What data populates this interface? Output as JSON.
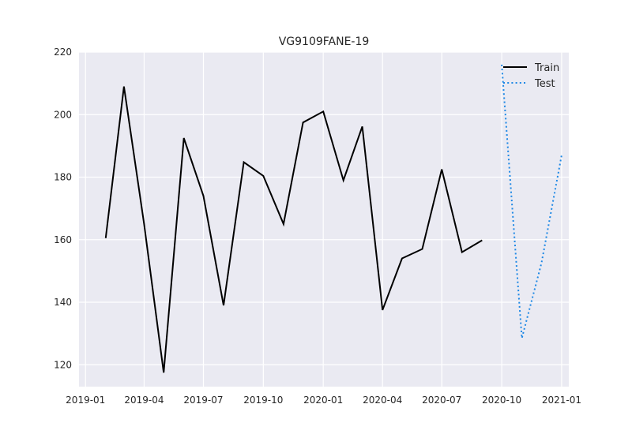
{
  "chart_data": {
    "type": "line",
    "title": "VG9109FANE-19",
    "xlabel": "",
    "ylabel": "",
    "x_ticks": [
      "2019-01",
      "2019-04",
      "2019-07",
      "2019-10",
      "2020-01",
      "2020-04",
      "2020-07",
      "2020-10",
      "2021-01"
    ],
    "y_ticks": [
      120,
      140,
      160,
      180,
      200,
      220
    ],
    "xlim": [
      "2018-12-22",
      "2021-01-12"
    ],
    "ylim": [
      113,
      220
    ],
    "grid": true,
    "legend": "top-right",
    "series": [
      {
        "name": "Train",
        "color": "#000000",
        "style": "solid",
        "x": [
          "2019-02-01",
          "2019-03-01",
          "2019-04-01",
          "2019-05-01",
          "2019-06-01",
          "2019-07-01",
          "2019-08-01",
          "2019-09-01",
          "2019-10-01",
          "2019-11-01",
          "2019-12-01",
          "2020-01-01",
          "2020-02-01",
          "2020-03-01",
          "2020-04-01",
          "2020-05-01",
          "2020-06-01",
          "2020-07-01",
          "2020-08-01",
          "2020-09-01"
        ],
        "values": [
          160.5,
          209.0,
          165.0,
          117.5,
          192.5,
          174.0,
          139.0,
          184.8,
          180.4,
          165.0,
          197.5,
          201.0,
          179.0,
          196.2,
          137.5,
          154.0,
          157.0,
          182.5,
          156.0,
          159.8
        ]
      },
      {
        "name": "Test",
        "color": "#1e88e5",
        "style": "dotted",
        "x": [
          "2020-10-01",
          "2020-11-01",
          "2020-12-01",
          "2021-01-01"
        ],
        "values": [
          216.0,
          128.5,
          152.5,
          187.0
        ]
      }
    ]
  }
}
